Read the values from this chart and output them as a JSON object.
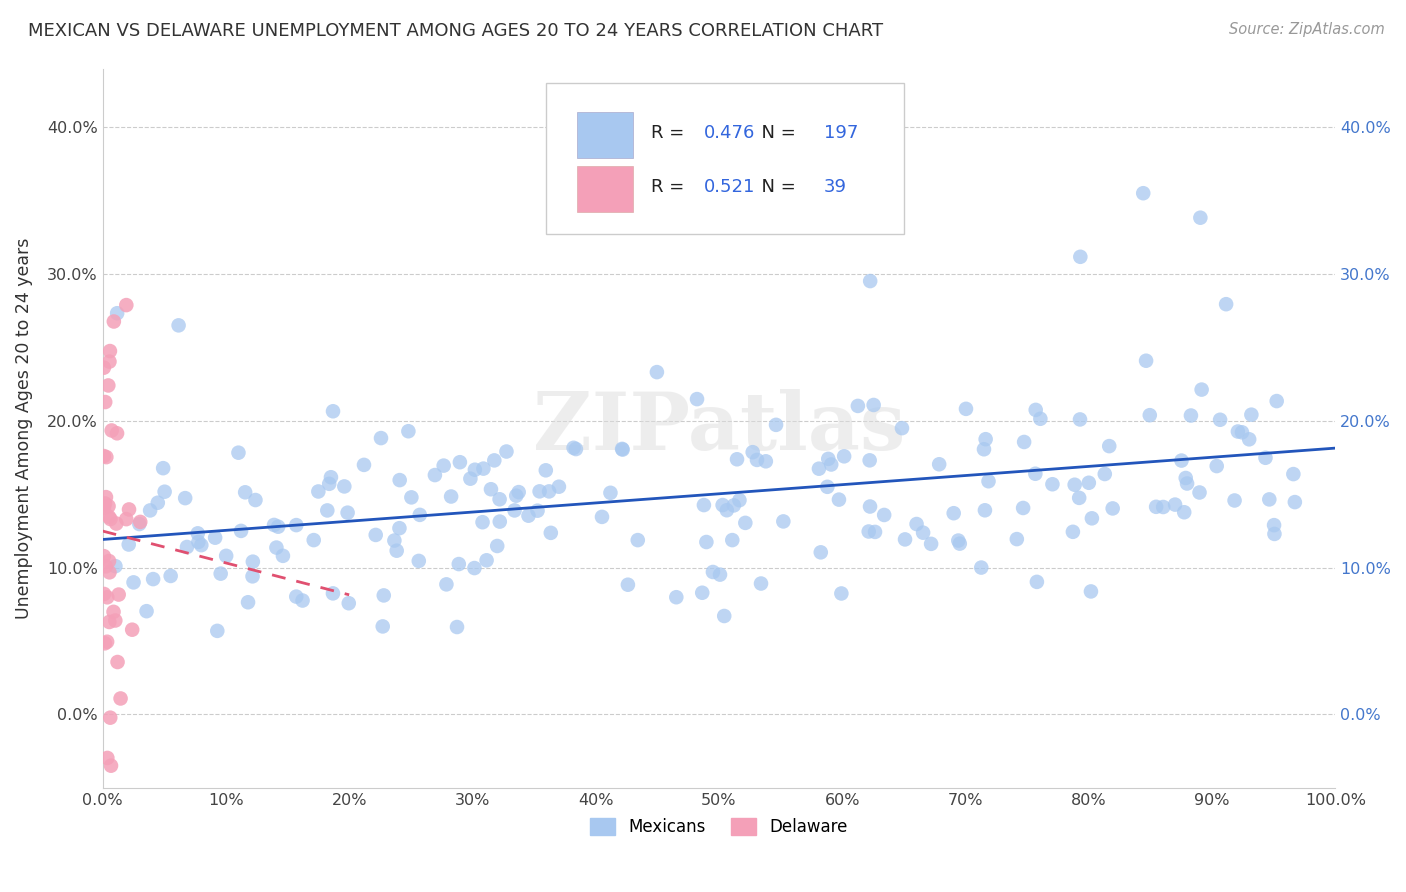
{
  "title": "MEXICAN VS DELAWARE UNEMPLOYMENT AMONG AGES 20 TO 24 YEARS CORRELATION CHART",
  "source": "Source: ZipAtlas.com",
  "ylabel": "Unemployment Among Ages 20 to 24 years",
  "R1": 0.476,
  "N1": 197,
  "R2": 0.521,
  "N2": 39,
  "color1": "#A8C8F0",
  "color2": "#F4A0B8",
  "line_color1": "#2255BB",
  "line_color2": "#E05070",
  "legend_label1": "Mexicans",
  "legend_label2": "Delaware",
  "background_color": "#FFFFFF",
  "watermark_text": "ZIPatlas",
  "xlim": [
    0.0,
    1.0
  ],
  "ylim": [
    -0.05,
    0.44
  ],
  "yticks": [
    0.0,
    0.1,
    0.2,
    0.3,
    0.4
  ],
  "seed1": 42,
  "seed2": 7
}
